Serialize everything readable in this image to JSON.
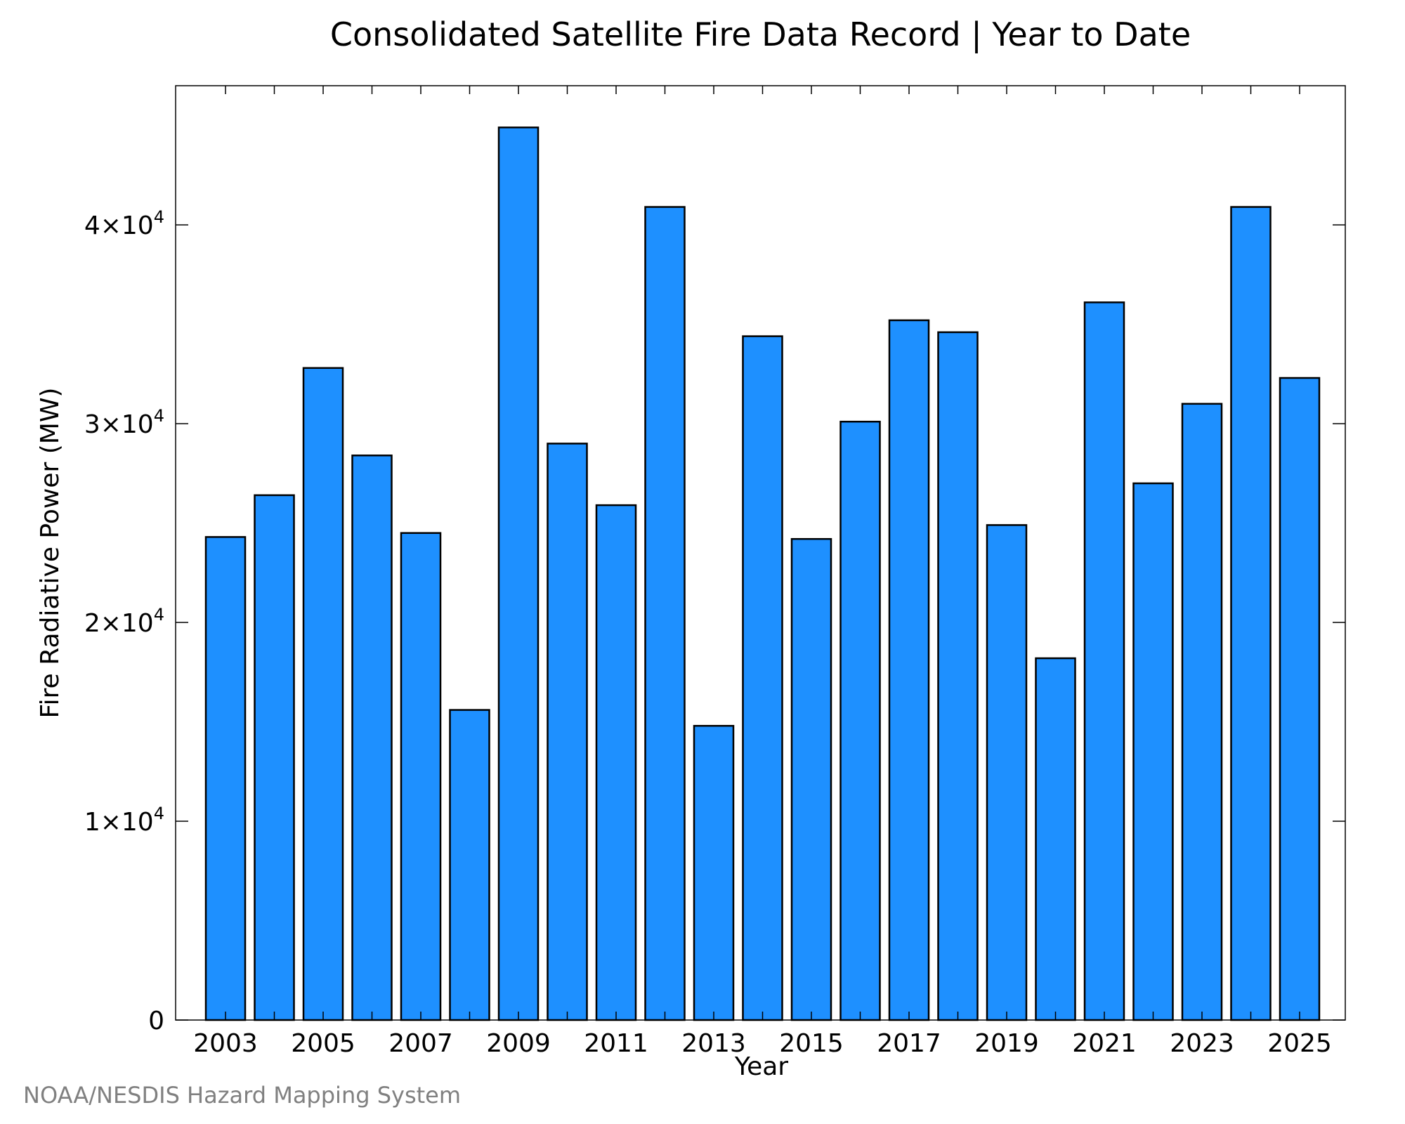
{
  "chart_data": {
    "type": "bar",
    "title": "Consolidated Satellite Fire Data Record | Year to Date",
    "xlabel": "Year",
    "ylabel": "Fire Radiative Power (MW)",
    "credit": "NOAA/NESDIS Hazard Mapping System",
    "categories": [
      "2003",
      "2004",
      "2005",
      "2006",
      "2007",
      "2008",
      "2009",
      "2010",
      "2011",
      "2012",
      "2013",
      "2014",
      "2015",
      "2016",
      "2017",
      "2018",
      "2019",
      "2020",
      "2021",
      "2022",
      "2023",
      "2024",
      "2025"
    ],
    "values": [
      24300,
      26400,
      32800,
      28400,
      24500,
      15600,
      44900,
      29000,
      25900,
      40900,
      14800,
      34400,
      24200,
      30100,
      35200,
      34600,
      24900,
      18200,
      36100,
      27000,
      31000,
      40900,
      32300
    ],
    "x_tick_labels": [
      "2003",
      "2005",
      "2007",
      "2009",
      "2011",
      "2013",
      "2015",
      "2017",
      "2019",
      "2021",
      "2023",
      "2025"
    ],
    "y_ticks": [
      {
        "value": 0,
        "mantissa": "0",
        "power": ""
      },
      {
        "value": 10000,
        "mantissa": "1×10",
        "power": "4"
      },
      {
        "value": 20000,
        "mantissa": "2×10",
        "power": "4"
      },
      {
        "value": 30000,
        "mantissa": "3×10",
        "power": "4"
      },
      {
        "value": 40000,
        "mantissa": "4×10",
        "power": "4"
      }
    ],
    "ylim": [
      0,
      47000
    ],
    "bar_color": "#1E90FF",
    "grid": false,
    "legend": "none"
  }
}
